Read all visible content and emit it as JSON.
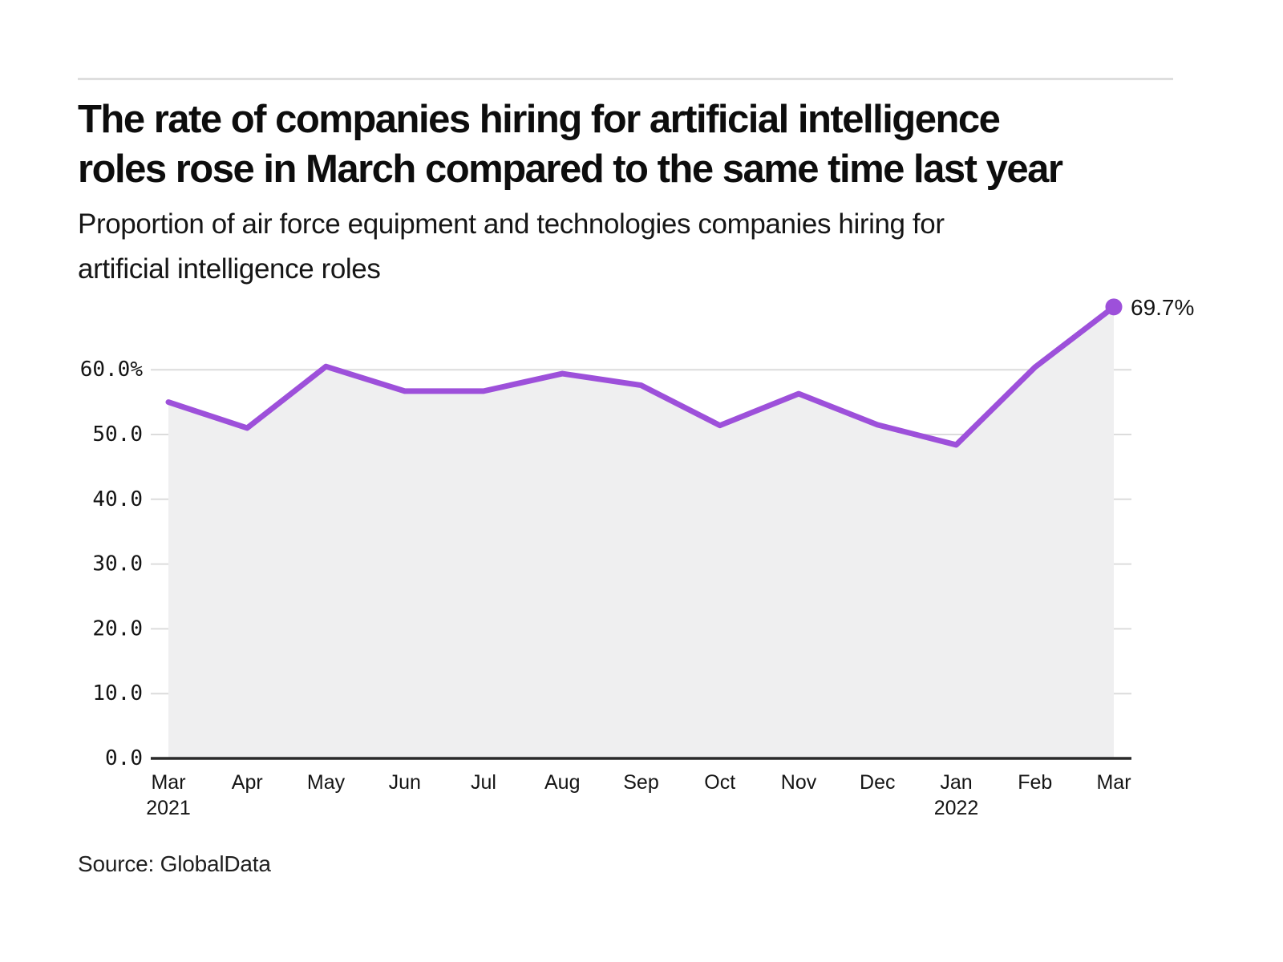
{
  "header": {
    "title_lines": [
      "The rate of companies hiring for artificial intelligence",
      "roles rose in March compared to the same time last year"
    ],
    "subtitle_lines": [
      "Proportion of air force equipment and technologies companies hiring for",
      "artificial intelligence roles"
    ]
  },
  "source": "Source: GlobalData",
  "colors": {
    "line": "#9d50da",
    "area_fill": "#efeff0",
    "grid": "#dcdcdc",
    "axis": "#2a2a2a",
    "text": "#141414",
    "divider": "#dedede"
  },
  "chart_data": {
    "type": "line",
    "title": "The rate of companies hiring for artificial intelligence roles rose in March compared to the same time last year",
    "subtitle": "Proportion of air force equipment and technologies companies hiring for artificial intelligence roles",
    "categories": [
      "Mar",
      "Apr",
      "May",
      "Jun",
      "Jul",
      "Aug",
      "Sep",
      "Oct",
      "Nov",
      "Dec",
      "Jan",
      "Feb",
      "Mar"
    ],
    "category_years": [
      "2021",
      "",
      "",
      "",
      "",
      "",
      "",
      "",
      "",
      "",
      "2022",
      "",
      ""
    ],
    "values": [
      55.0,
      51.0,
      60.5,
      56.7,
      56.7,
      59.4,
      57.6,
      51.4,
      56.3,
      51.5,
      48.4,
      60.4,
      69.7
    ],
    "unit": "%",
    "ylim": [
      0,
      70
    ],
    "yticks": [
      0,
      10,
      20,
      30,
      40,
      50,
      60
    ],
    "ytick_labels": [
      "0.0",
      "10.0",
      "20.0",
      "30.0",
      "40.0",
      "50.0",
      "60.0%"
    ],
    "end_label": "69.7%",
    "grid": true,
    "legend": "none",
    "area": true
  }
}
